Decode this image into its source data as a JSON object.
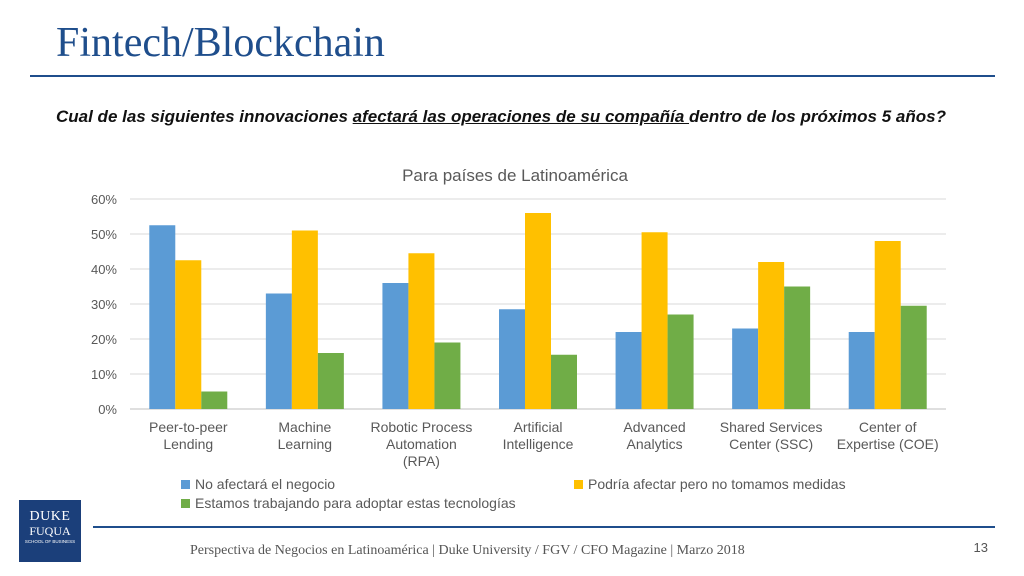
{
  "slide": {
    "title": "Fintech/Blockchain",
    "question_pre": "Cual de las siguientes innovaciones ",
    "question_underlined": "afectará las operaciones de su compañía ",
    "question_post": "dentro de los próximos 5 años?",
    "footer": "Perspectiva de Negocios en Latinoamérica | Duke University / FGV / CFO Magazine | Marzo 2018",
    "page_number": "13",
    "logo_line1": "DUKE",
    "logo_line2": "FUQUA",
    "logo_line3": "SCHOOL OF BUSINESS"
  },
  "chart_data": {
    "type": "bar",
    "title": "Para países de Latinoamérica",
    "categories": [
      [
        "Peer-to-peer",
        "Lending"
      ],
      [
        "Machine",
        "Learning"
      ],
      [
        "Robotic Process",
        "Automation",
        "(RPA)"
      ],
      [
        "Artificial",
        "Intelligence"
      ],
      [
        "Advanced",
        "Analytics"
      ],
      [
        "Shared Services",
        "Center (SSC)"
      ],
      [
        "Center of",
        "Expertise (COE)"
      ]
    ],
    "series": [
      {
        "name": "No afectará el negocio",
        "color": "#5b9bd5",
        "values": [
          52.5,
          33,
          36,
          28.5,
          22,
          23,
          22
        ]
      },
      {
        "name": "Podría afectar pero no tomamos medidas",
        "color": "#ffc000",
        "values": [
          42.5,
          51,
          44.5,
          56,
          50.5,
          42,
          48
        ]
      },
      {
        "name": "Estamos trabajando para adoptar estas tecnologías",
        "color": "#70ad47",
        "values": [
          5,
          16,
          19,
          15.5,
          27,
          35,
          29.5
        ]
      }
    ],
    "ylim": [
      0,
      60
    ],
    "yticks": [
      "0%",
      "10%",
      "20%",
      "30%",
      "40%",
      "50%",
      "60%"
    ],
    "grid": true,
    "legend_position": "bottom"
  }
}
